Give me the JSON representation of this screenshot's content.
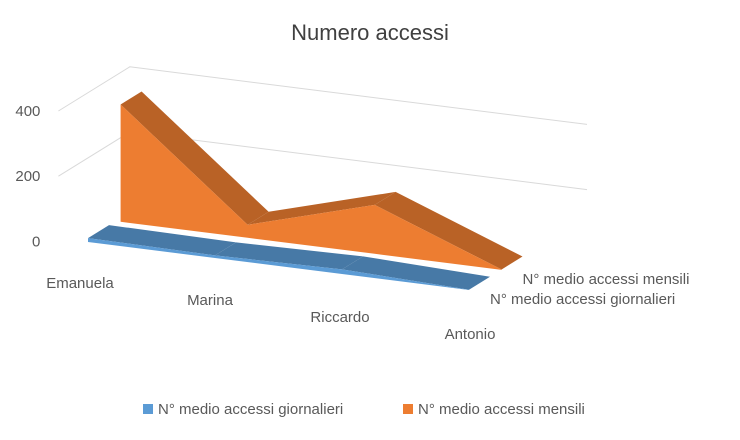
{
  "chart_data": {
    "type": "area",
    "title": "Numero accessi",
    "categories": [
      "Emanuela",
      "Marina",
      "Riccardo",
      "Antonio"
    ],
    "series": [
      {
        "name": "N° medio accessi giornalieri",
        "values": [
          12,
          8,
          14,
          1
        ],
        "color": "#5B9BD5"
      },
      {
        "name": "N° medio accessi mensili",
        "values": [
          360,
          40,
          150,
          1
        ],
        "color": "#ED7D31"
      }
    ],
    "y_ticks": [
      0,
      200,
      400
    ],
    "ylim": [
      0,
      450
    ],
    "grid": true,
    "legend_position": "bottom",
    "style": "3d"
  }
}
